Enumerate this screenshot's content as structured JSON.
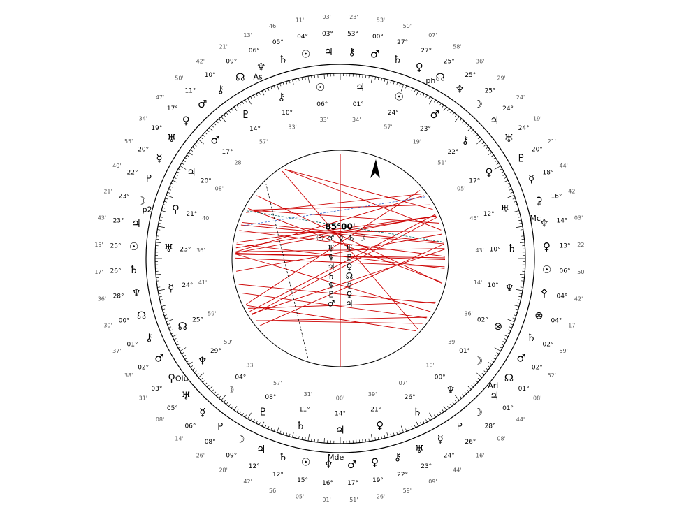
{
  "wheel": {
    "center_label": "85°00'",
    "points": [
      "ph",
      "Mc",
      "Ari",
      "Mde",
      "Olu",
      "p2",
      "As"
    ],
    "center_glyphs": [
      "☉",
      "♂",
      "☿",
      "♄",
      "☽",
      "♅",
      "♅",
      "♆",
      "♇",
      "♃",
      "♀",
      "♄",
      "☊",
      "♆",
      "☿",
      "♇",
      "♀",
      "♂",
      "♃"
    ],
    "outer": [
      {
        "glyph": "⚷",
        "deg": "53°",
        "min": "23'"
      },
      {
        "glyph": "♂",
        "deg": "00°",
        "min": "53'"
      },
      {
        "glyph": "♄",
        "deg": "27°",
        "min": "50'"
      },
      {
        "glyph": "♀",
        "deg": "27°",
        "min": "07'"
      },
      {
        "glyph": "☊",
        "deg": "25°",
        "min": "58'"
      },
      {
        "glyph": "♆",
        "deg": "25°",
        "min": "36'"
      },
      {
        "glyph": "☽",
        "deg": "25°",
        "min": "29'"
      },
      {
        "glyph": "♃",
        "deg": "24°",
        "min": "24'"
      },
      {
        "glyph": "♅",
        "deg": "24°",
        "min": "19'"
      },
      {
        "glyph": "♇",
        "deg": "20°",
        "min": "21'"
      },
      {
        "glyph": "☿",
        "deg": "18°",
        "min": "44'"
      },
      {
        "glyph": "⚳",
        "deg": "16°",
        "min": "42'"
      },
      {
        "glyph": "♆",
        "deg": "14°",
        "min": "03'"
      },
      {
        "glyph": "♀",
        "deg": "13°",
        "min": "22'"
      },
      {
        "glyph": "☉",
        "deg": "06°",
        "min": "50'"
      },
      {
        "glyph": "⚴",
        "deg": "04°",
        "min": "42'"
      },
      {
        "glyph": "⊗",
        "deg": "04°",
        "min": "17'"
      },
      {
        "glyph": "♄",
        "deg": "02°",
        "min": "59'"
      },
      {
        "glyph": "♂",
        "deg": "02°",
        "min": "52'"
      },
      {
        "glyph": "☊",
        "deg": "01°",
        "min": "08'"
      },
      {
        "glyph": "♃",
        "deg": "01°",
        "min": "44'"
      },
      {
        "glyph": "☽",
        "deg": "28°",
        "min": "08'"
      },
      {
        "glyph": "♇",
        "deg": "26°",
        "min": "16'"
      },
      {
        "glyph": "☿",
        "deg": "24°",
        "min": "44'"
      },
      {
        "glyph": "♅",
        "deg": "23°",
        "min": "09'"
      },
      {
        "glyph": "⚷",
        "deg": "22°",
        "min": "59'"
      },
      {
        "glyph": "♀",
        "deg": "19°",
        "min": "26'"
      },
      {
        "glyph": "♂",
        "deg": "17°",
        "min": "51'"
      },
      {
        "glyph": "♆",
        "deg": "16°",
        "min": "01'"
      },
      {
        "glyph": "☉",
        "deg": "15°",
        "min": "05'"
      },
      {
        "glyph": "♄",
        "deg": "12°",
        "min": "56'"
      },
      {
        "glyph": "♃",
        "deg": "12°",
        "min": "42'"
      },
      {
        "glyph": "☽",
        "deg": "09°",
        "min": "28'"
      },
      {
        "glyph": "♇",
        "deg": "08°",
        "min": "26'"
      },
      {
        "glyph": "☿",
        "deg": "06°",
        "min": "14'"
      },
      {
        "glyph": "♅",
        "deg": "05°",
        "min": "08'"
      },
      {
        "glyph": "♀",
        "deg": "03°",
        "min": "31'"
      },
      {
        "glyph": "♂",
        "deg": "02°",
        "min": "38'"
      },
      {
        "glyph": "⚷",
        "deg": "01°",
        "min": "37'"
      },
      {
        "glyph": "☊",
        "deg": "00°",
        "min": "30'"
      },
      {
        "glyph": "♆",
        "deg": "28°",
        "min": "36'"
      },
      {
        "glyph": "♄",
        "deg": "26°",
        "min": "17'"
      },
      {
        "glyph": "☉",
        "deg": "25°",
        "min": "15'"
      },
      {
        "glyph": "♃",
        "deg": "23°",
        "min": "43'"
      },
      {
        "glyph": "☽",
        "deg": "23°",
        "min": "21'"
      },
      {
        "glyph": "♇",
        "deg": "22°",
        "min": "40'"
      },
      {
        "glyph": "☿",
        "deg": "20°",
        "min": "55'"
      },
      {
        "glyph": "♅",
        "deg": "19°",
        "min": "34'"
      },
      {
        "glyph": "♀",
        "deg": "17°",
        "min": "47'"
      },
      {
        "glyph": "♂",
        "deg": "11°",
        "min": "50'"
      },
      {
        "glyph": "⚷",
        "deg": "10°",
        "min": "42'"
      },
      {
        "glyph": "☊",
        "deg": "09°",
        "min": "21'"
      },
      {
        "glyph": "♆",
        "deg": "06°",
        "min": "13'"
      },
      {
        "glyph": "♄",
        "deg": "05°",
        "min": "46'"
      },
      {
        "glyph": "☉",
        "deg": "04°",
        "min": "11'"
      },
      {
        "glyph": "♃",
        "deg": "03°",
        "min": "03'"
      }
    ],
    "inner": [
      {
        "glyph": "♃",
        "deg": "01°",
        "min": "34'"
      },
      {
        "glyph": "☉",
        "deg": "24°",
        "min": "57'"
      },
      {
        "glyph": "♂",
        "deg": "23°",
        "min": "19'"
      },
      {
        "glyph": "⚷",
        "deg": "22°",
        "min": "51'"
      },
      {
        "glyph": "♀",
        "deg": "17°",
        "min": "05'"
      },
      {
        "glyph": "♅",
        "deg": "12°",
        "min": "45'"
      },
      {
        "glyph": "♄",
        "deg": "10°",
        "min": "43'"
      },
      {
        "glyph": "♆",
        "deg": "10°",
        "min": "14'"
      },
      {
        "glyph": "⊗",
        "deg": "02°",
        "min": "36'"
      },
      {
        "glyph": "☽",
        "deg": "01°",
        "min": "39'"
      },
      {
        "glyph": "♆",
        "deg": "00°",
        "min": "10'"
      },
      {
        "glyph": "♄",
        "deg": "26°",
        "min": "07'"
      },
      {
        "glyph": "♀",
        "deg": "21°",
        "min": "39'"
      },
      {
        "glyph": "♃",
        "deg": "14°",
        "min": "00'"
      },
      {
        "glyph": "♄",
        "deg": "11°",
        "min": "31'"
      },
      {
        "glyph": "♇",
        "deg": "08°",
        "min": "57'"
      },
      {
        "glyph": "☽",
        "deg": "04°",
        "min": "33'"
      },
      {
        "glyph": "♆",
        "deg": "29°",
        "min": "59'"
      },
      {
        "glyph": "☊",
        "deg": "25°",
        "min": "59'"
      },
      {
        "glyph": "☿",
        "deg": "24°",
        "min": "41'"
      },
      {
        "glyph": "♅",
        "deg": "23°",
        "min": "36'"
      },
      {
        "glyph": "♀",
        "deg": "21°",
        "min": "40'"
      },
      {
        "glyph": "♃",
        "deg": "20°",
        "min": "08'"
      },
      {
        "glyph": "♂",
        "deg": "17°",
        "min": "28'"
      },
      {
        "glyph": "♇",
        "deg": "14°",
        "min": "57'"
      },
      {
        "glyph": "⚷",
        "deg": "10°",
        "min": "33'"
      },
      {
        "glyph": "☉",
        "deg": "06°",
        "min": "33'"
      }
    ]
  }
}
